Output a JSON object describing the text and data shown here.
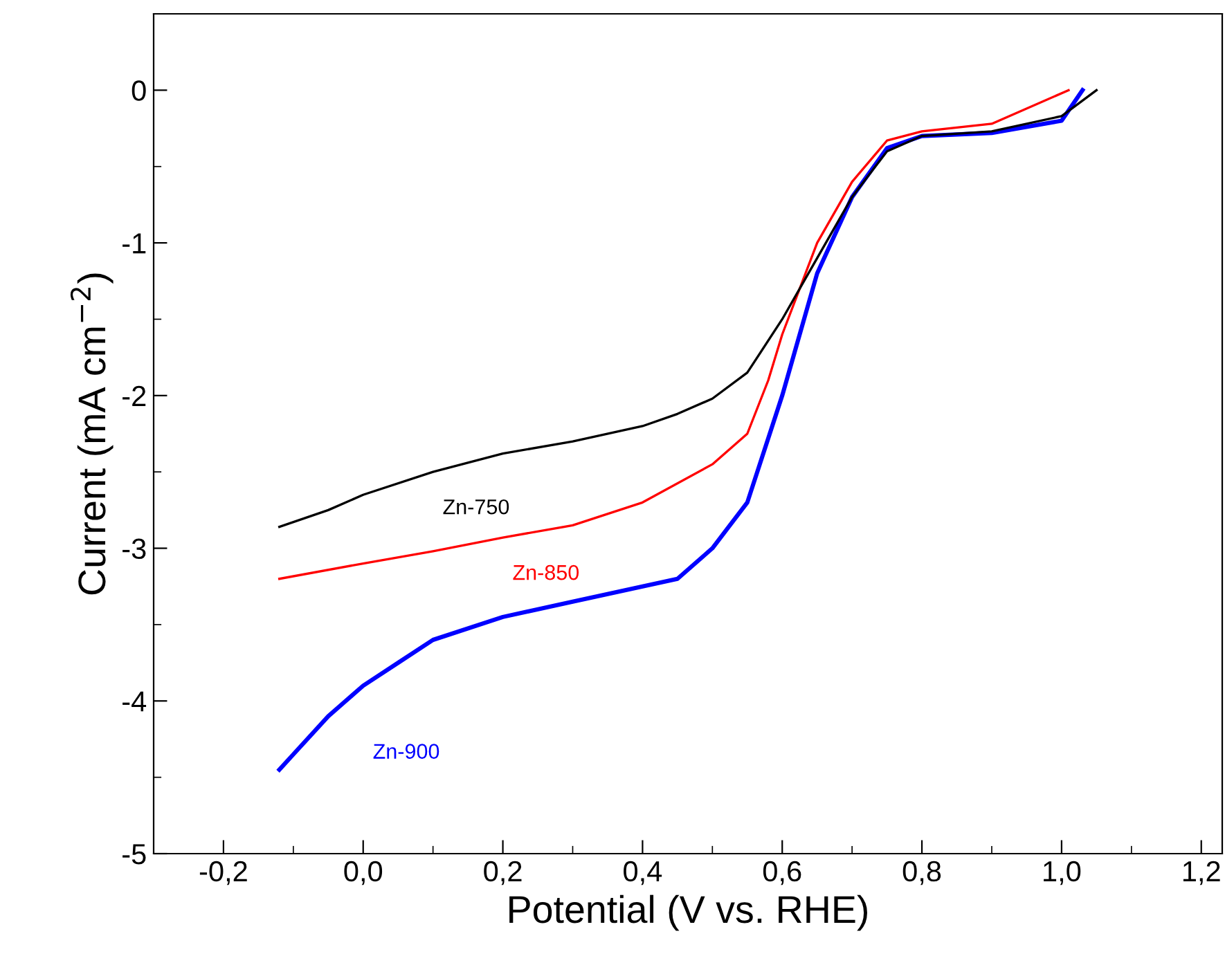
{
  "chart_data": {
    "type": "line",
    "xlabel": "Potential (V vs. RHE)",
    "ylabel": "Current (mA cm$^{−2}$)",
    "xlim": [
      -0.3,
      1.23
    ],
    "ylim": [
      -5,
      0.5
    ],
    "xticks": [
      {
        "value": -0.2,
        "label": "-0,2"
      },
      {
        "value": 0,
        "label": "0,0"
      },
      {
        "value": 0.2,
        "label": "0,2"
      },
      {
        "value": 0.4,
        "label": "0,4"
      },
      {
        "value": 0.6,
        "label": "0,6"
      },
      {
        "value": 0.8,
        "label": "0,8"
      },
      {
        "value": 1.0,
        "label": "1,0"
      },
      {
        "value": 1.2,
        "label": "1,2"
      }
    ],
    "yticks": [
      -5,
      -4,
      -3,
      -2,
      -1,
      0
    ],
    "grid": false,
    "series": [
      {
        "name": "Zn-750",
        "color": "#000000",
        "x": [
          -0.12,
          -0.05,
          0.0,
          0.1,
          0.2,
          0.3,
          0.4,
          0.45,
          0.5,
          0.55,
          0.6,
          0.65,
          0.7,
          0.75,
          0.8,
          0.9,
          1.0,
          1.05
        ],
        "values": [
          -2.86,
          -2.75,
          -2.65,
          -2.5,
          -2.38,
          -2.3,
          -2.2,
          -2.12,
          -2.02,
          -1.85,
          -1.5,
          -1.1,
          -0.7,
          -0.4,
          -0.3,
          -0.27,
          -0.17,
          0
        ]
      },
      {
        "name": "Zn-850",
        "color": "#ff0000",
        "x": [
          -0.12,
          0.0,
          0.1,
          0.2,
          0.3,
          0.4,
          0.5,
          0.55,
          0.58,
          0.6,
          0.65,
          0.7,
          0.75,
          0.8,
          0.9,
          1.01
        ],
        "values": [
          -3.2,
          -3.1,
          -3.02,
          -2.93,
          -2.85,
          -2.7,
          -2.45,
          -2.25,
          -1.9,
          -1.6,
          -1.0,
          -0.6,
          -0.33,
          -0.27,
          -0.22,
          0
        ]
      },
      {
        "name": "Zn-900",
        "color": "#0000ff",
        "x": [
          -0.12,
          -0.1,
          -0.05,
          0.0,
          0.05,
          0.1,
          0.2,
          0.3,
          0.4,
          0.45,
          0.5,
          0.55,
          0.6,
          0.65,
          0.7,
          0.75,
          0.8,
          0.9,
          1.0,
          1.03
        ],
        "values": [
          -4.45,
          -4.35,
          -4.1,
          -3.9,
          -3.75,
          -3.6,
          -3.45,
          -3.35,
          -3.25,
          -3.2,
          -3.0,
          -2.7,
          -2.0,
          -1.2,
          -0.7,
          -0.38,
          -0.3,
          -0.28,
          -0.2,
          0
        ]
      }
    ]
  }
}
